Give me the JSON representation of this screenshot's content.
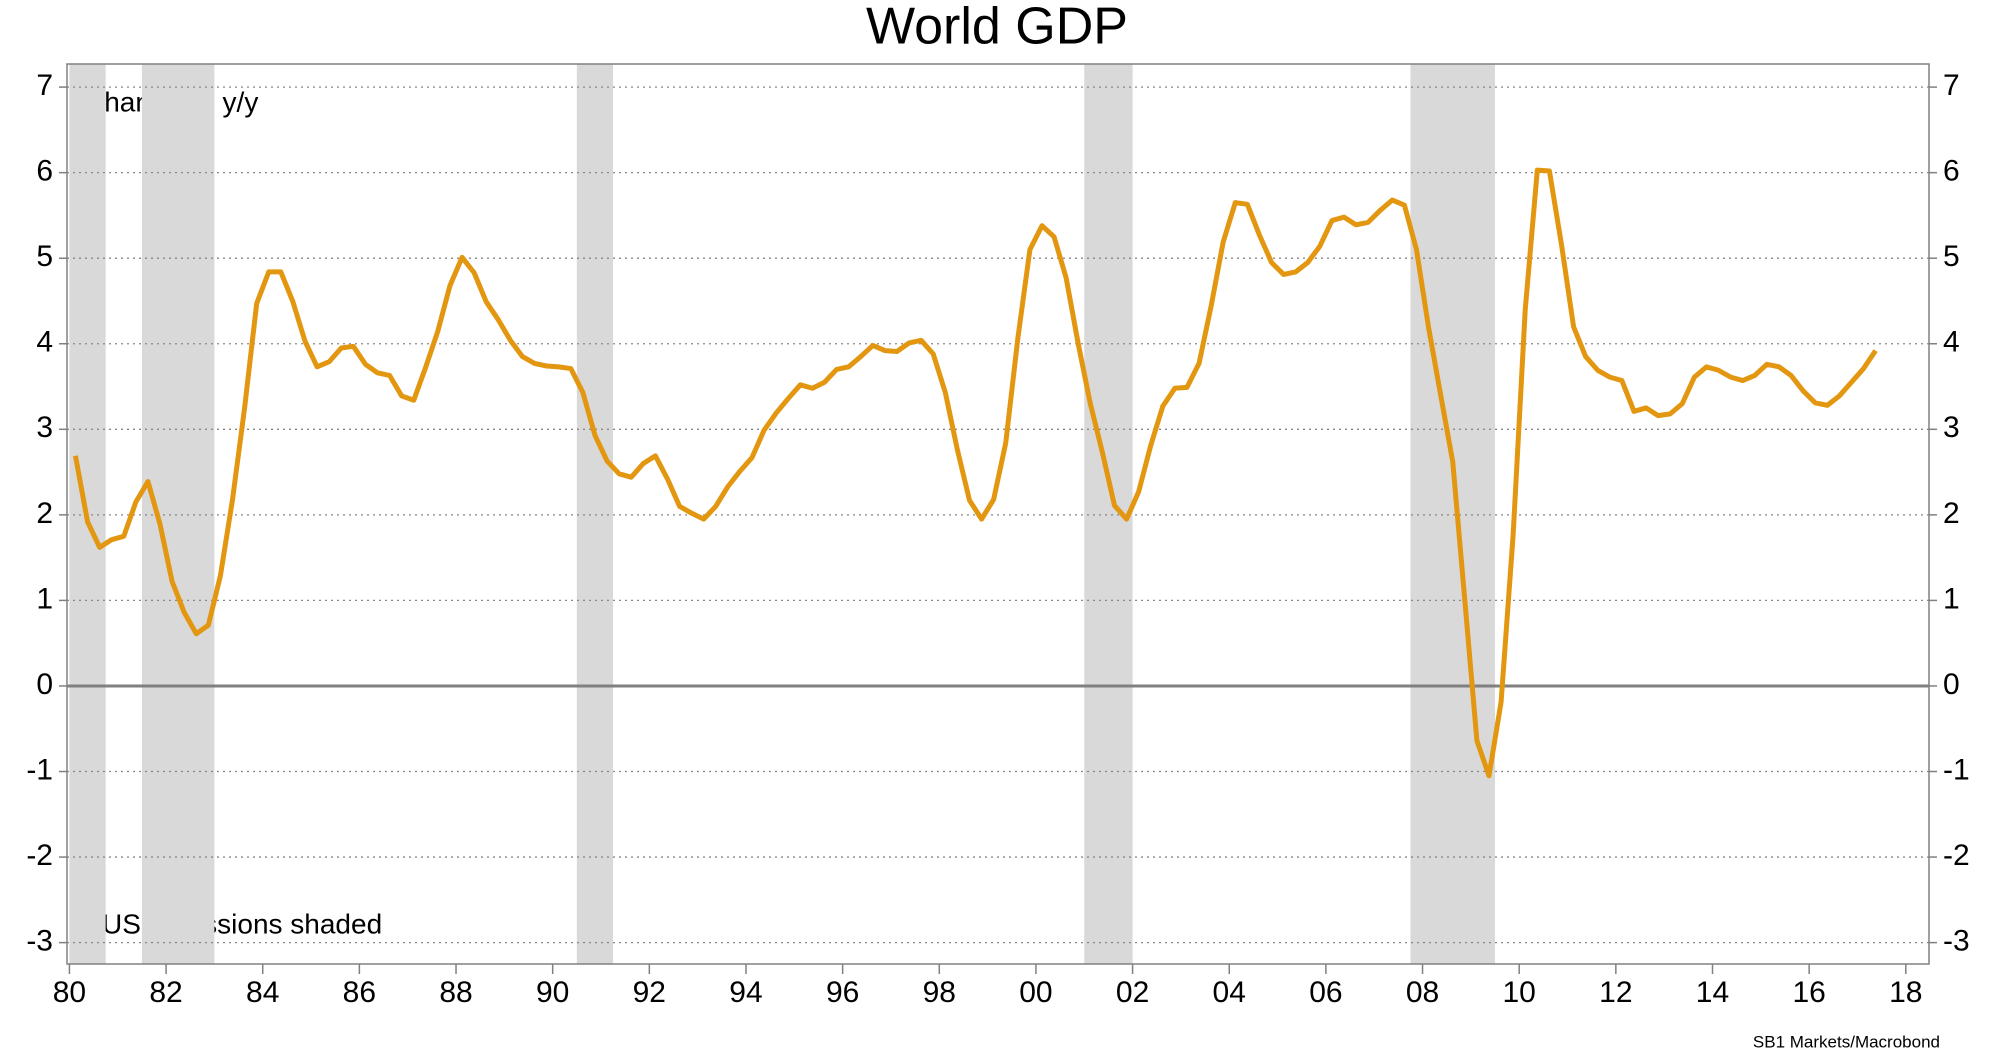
{
  "chart_data": {
    "type": "line",
    "title": "World GDP",
    "annotations": [
      "Change % y/y",
      "US recessions shaded"
    ],
    "source": "SB1 Markets/Macrobond",
    "color": "#e3960f",
    "recession_color": "#d9d9d9",
    "recessions": [
      [
        1980.0,
        1980.75
      ],
      [
        1981.5,
        1983.0
      ],
      [
        1990.5,
        1991.25
      ],
      [
        2001.0,
        2002.0
      ],
      [
        2007.75,
        2009.5
      ]
    ],
    "x": [
      1980.125,
      1980.375,
      1980.625,
      1980.875,
      1981.125,
      1981.375,
      1981.625,
      1981.875,
      1982.125,
      1982.375,
      1982.625,
      1982.875,
      1983.125,
      1983.375,
      1983.625,
      1983.875,
      1984.125,
      1984.375,
      1984.625,
      1984.875,
      1985.125,
      1985.375,
      1985.625,
      1985.875,
      1986.125,
      1986.375,
      1986.625,
      1986.875,
      1987.125,
      1987.375,
      1987.625,
      1987.875,
      1988.125,
      1988.375,
      1988.625,
      1988.875,
      1989.125,
      1989.375,
      1989.625,
      1989.875,
      1990.125,
      1990.375,
      1990.625,
      1990.875,
      1991.125,
      1991.375,
      1991.625,
      1991.875,
      1992.125,
      1992.375,
      1992.625,
      1992.875,
      1993.125,
      1993.375,
      1993.625,
      1993.875,
      1994.125,
      1994.375,
      1994.625,
      1994.875,
      1995.125,
      1995.375,
      1995.625,
      1995.875,
      1996.125,
      1996.375,
      1996.625,
      1996.875,
      1997.125,
      1997.375,
      1997.625,
      1997.875,
      1998.125,
      1998.375,
      1998.625,
      1998.875,
      1999.125,
      1999.375,
      1999.625,
      1999.875,
      2000.125,
      2000.375,
      2000.625,
      2000.875,
      2001.125,
      2001.375,
      2001.625,
      2001.875,
      2002.125,
      2002.375,
      2002.625,
      2002.875,
      2003.125,
      2003.375,
      2003.625,
      2003.875,
      2004.125,
      2004.375,
      2004.625,
      2004.875,
      2005.125,
      2005.375,
      2005.625,
      2005.875,
      2006.125,
      2006.375,
      2006.625,
      2006.875,
      2007.125,
      2007.375,
      2007.625,
      2007.875,
      2008.125,
      2008.375,
      2008.625,
      2008.875,
      2009.125,
      2009.375,
      2009.625,
      2009.875,
      2010.125,
      2010.375,
      2010.625,
      2010.875,
      2011.125,
      2011.375,
      2011.625,
      2011.875,
      2012.125,
      2012.375,
      2012.625,
      2012.875,
      2013.125,
      2013.375,
      2013.625,
      2013.875,
      2014.125,
      2014.375,
      2014.625,
      2014.875,
      2015.125,
      2015.375,
      2015.625,
      2015.875,
      2016.125,
      2016.375,
      2016.625,
      2016.875,
      2017.125,
      2017.375
    ],
    "values": [
      2.69,
      1.92,
      1.62,
      1.71,
      1.75,
      2.15,
      2.39,
      1.89,
      1.22,
      0.86,
      0.61,
      0.71,
      1.29,
      2.18,
      3.25,
      4.47,
      4.84,
      4.84,
      4.49,
      4.03,
      3.73,
      3.79,
      3.95,
      3.97,
      3.76,
      3.66,
      3.63,
      3.39,
      3.34,
      3.73,
      4.15,
      4.68,
      5.01,
      4.83,
      4.49,
      4.28,
      4.04,
      3.85,
      3.77,
      3.74,
      3.73,
      3.71,
      3.43,
      2.93,
      2.63,
      2.48,
      2.44,
      2.6,
      2.69,
      2.42,
      2.1,
      2.02,
      1.95,
      2.1,
      2.33,
      2.51,
      2.67,
      2.99,
      3.19,
      3.36,
      3.52,
      3.48,
      3.55,
      3.7,
      3.73,
      3.85,
      3.98,
      3.92,
      3.91,
      4.01,
      4.04,
      3.88,
      3.43,
      2.76,
      2.17,
      1.95,
      2.18,
      2.84,
      4.06,
      5.1,
      5.38,
      5.25,
      4.77,
      4.0,
      3.3,
      2.73,
      2.11,
      1.95,
      2.27,
      2.81,
      3.27,
      3.48,
      3.49,
      3.77,
      4.44,
      5.19,
      5.65,
      5.63,
      5.27,
      4.95,
      4.81,
      4.84,
      4.95,
      5.14,
      5.44,
      5.48,
      5.39,
      5.42,
      5.56,
      5.68,
      5.62,
      5.1,
      4.19,
      3.4,
      2.62,
      1.0,
      -0.64,
      -1.05,
      -0.19,
      1.77,
      4.4,
      6.03,
      6.02,
      5.16,
      4.2,
      3.85,
      3.69,
      3.61,
      3.57,
      3.21,
      3.25,
      3.16,
      3.18,
      3.3,
      3.61,
      3.73,
      3.69,
      3.61,
      3.57,
      3.63,
      3.76,
      3.73,
      3.63,
      3.45,
      3.31,
      3.28,
      3.39,
      3.55,
      3.71,
      3.92
    ],
    "xlim": [
      1979.95,
      2018.48
    ],
    "xticks": [
      {
        "value": 1980,
        "label": "80"
      },
      {
        "value": 1982,
        "label": "82"
      },
      {
        "value": 1984,
        "label": "84"
      },
      {
        "value": 1986,
        "label": "86"
      },
      {
        "value": 1988,
        "label": "88"
      },
      {
        "value": 1990,
        "label": "90"
      },
      {
        "value": 1992,
        "label": "92"
      },
      {
        "value": 1994,
        "label": "94"
      },
      {
        "value": 1996,
        "label": "96"
      },
      {
        "value": 1998,
        "label": "98"
      },
      {
        "value": 2000,
        "label": "00"
      },
      {
        "value": 2002,
        "label": "02"
      },
      {
        "value": 2004,
        "label": "04"
      },
      {
        "value": 2006,
        "label": "06"
      },
      {
        "value": 2008,
        "label": "08"
      },
      {
        "value": 2010,
        "label": "10"
      },
      {
        "value": 2012,
        "label": "12"
      },
      {
        "value": 2014,
        "label": "14"
      },
      {
        "value": 2016,
        "label": "16"
      },
      {
        "value": 2018,
        "label": "18"
      }
    ],
    "ylim": [
      -3.25,
      7.27
    ],
    "yticks": [
      -3,
      -2,
      -1,
      0,
      1,
      2,
      3,
      4,
      5,
      6,
      7
    ],
    "grid": true
  }
}
